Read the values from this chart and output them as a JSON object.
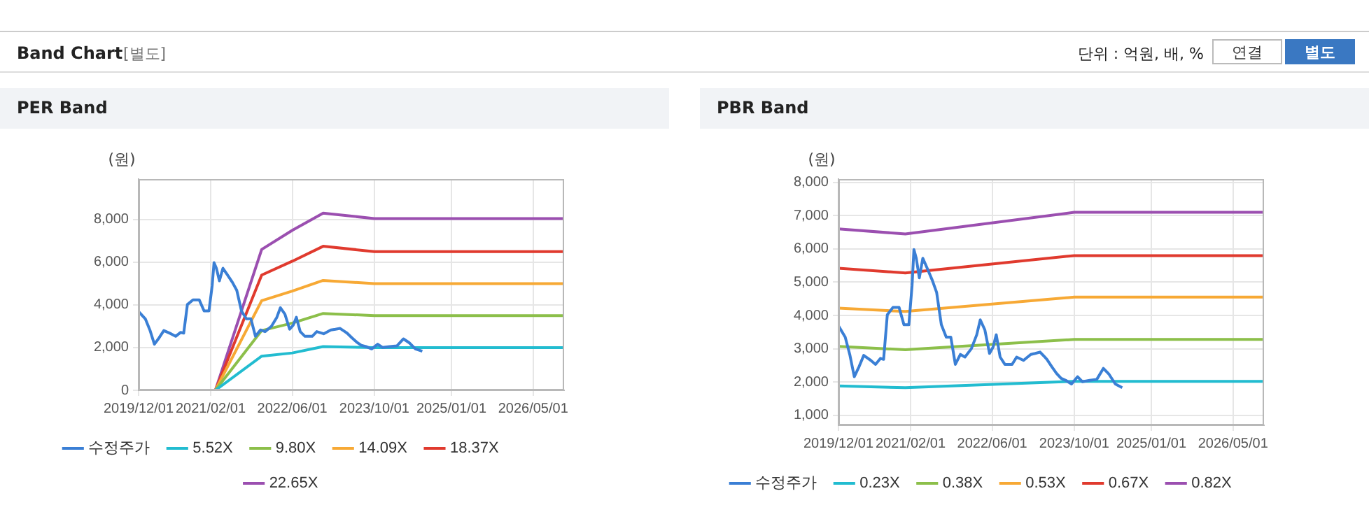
{
  "chart_data": [
    {
      "type": "line",
      "title": "PER Band",
      "ylabel": "(원)",
      "annotations": [
        "Band Chart",
        "[별도]",
        "단위 : 억원, 배, %",
        "연결",
        "별도"
      ],
      "xlim": [
        "2019-12-01",
        "2026-11-01"
      ],
      "xticks": [
        {
          "value": "2019-12-01",
          "label": "2019/12/01"
        },
        {
          "value": "2021-02-01",
          "label": "2021/02/01"
        },
        {
          "value": "2022-06-01",
          "label": "2022/06/01"
        },
        {
          "value": "2023-10-01",
          "label": "2023/10/01"
        },
        {
          "value": "2025-01-01",
          "label": "2025/01/01"
        },
        {
          "value": "2026-05-01",
          "label": "2026/05/01"
        }
      ],
      "ylim": [
        0,
        9900
      ],
      "yticks": [
        {
          "value": 0,
          "label": "0"
        },
        {
          "value": 2000,
          "label": "2,000"
        },
        {
          "value": 4000,
          "label": "4,000"
        },
        {
          "value": 6000,
          "label": "6,000"
        },
        {
          "value": 8000,
          "label": "8,000"
        }
      ],
      "grid": true,
      "legend": "bottom",
      "marker": "none",
      "line_style": "solid",
      "series": [
        {
          "name": "수정주가",
          "color": "#3a7fd5",
          "x": [
            "2019-12-01",
            "2020-01-10",
            "2020-02-06",
            "2020-03-04",
            "2020-04-01",
            "2020-04-29",
            "2020-06-10",
            "2020-07-08",
            "2020-08-06",
            "2020-08-25",
            "2020-09-16",
            "2020-10-19",
            "2020-11-25",
            "2020-12-24",
            "2021-01-22",
            "2021-02-10",
            "2021-02-21",
            "2021-03-07",
            "2021-03-25",
            "2021-04-15",
            "2021-05-10",
            "2021-06-10",
            "2021-07-06",
            "2021-08-03",
            "2021-09-01",
            "2021-09-28",
            "2021-10-25",
            "2021-11-24",
            "2021-12-21",
            "2022-01-28",
            "2022-03-01",
            "2022-03-22",
            "2022-04-18",
            "2022-05-16",
            "2022-06-06",
            "2022-06-25",
            "2022-07-18",
            "2022-08-15",
            "2022-09-27",
            "2022-10-24",
            "2022-12-04",
            "2023-01-16",
            "2023-02-12",
            "2023-03-12",
            "2023-04-09",
            "2023-04-22",
            "2023-05-21",
            "2023-06-18",
            "2023-07-15",
            "2023-08-12",
            "2023-09-15",
            "2023-10-21",
            "2023-11-18",
            "2024-01-01",
            "2024-02-12",
            "2024-03-22",
            "2024-04-25",
            "2024-06-01",
            "2024-07-12"
          ],
          "values": [
            3690,
            3350,
            2830,
            2160,
            2460,
            2800,
            2650,
            2530,
            2710,
            2680,
            4020,
            4240,
            4240,
            3720,
            3720,
            4900,
            5980,
            5720,
            5130,
            5720,
            5430,
            5060,
            4690,
            3720,
            3350,
            3350,
            2530,
            2830,
            2750,
            3000,
            3420,
            3870,
            3570,
            2860,
            3050,
            3420,
            2750,
            2530,
            2530,
            2750,
            2650,
            2830,
            2860,
            2900,
            2750,
            2680,
            2460,
            2260,
            2110,
            2050,
            1940,
            2160,
            2010,
            2050,
            2080,
            2410,
            2230,
            1940,
            1830
          ]
        },
        {
          "name": "5.52X",
          "color": "#22bcd0",
          "x": [
            "2021-03-01",
            "2021-12-01",
            "2022-06-01",
            "2022-12-01",
            "2023-10-01",
            "2026-11-01"
          ],
          "values": [
            0,
            1600,
            1750,
            2050,
            2000,
            2000
          ]
        },
        {
          "name": "9.80X",
          "color": "#8cbf4a",
          "x": [
            "2021-03-01",
            "2021-12-01",
            "2022-06-01",
            "2022-12-01",
            "2023-10-01",
            "2026-11-01"
          ],
          "values": [
            0,
            2800,
            3150,
            3600,
            3500,
            3500
          ]
        },
        {
          "name": "14.09X",
          "color": "#f7a935",
          "x": [
            "2021-03-01",
            "2021-12-01",
            "2022-06-01",
            "2022-12-01",
            "2023-10-01",
            "2026-11-01"
          ],
          "values": [
            0,
            4200,
            4650,
            5150,
            5000,
            5000
          ]
        },
        {
          "name": "18.37X",
          "color": "#e03a2e",
          "x": [
            "2021-03-01",
            "2021-12-01",
            "2022-06-01",
            "2022-12-01",
            "2023-10-01",
            "2026-11-01"
          ],
          "values": [
            0,
            5400,
            6050,
            6750,
            6500,
            6500
          ]
        },
        {
          "name": "22.65X",
          "color": "#9b4fb0",
          "x": [
            "2021-03-01",
            "2021-12-01",
            "2022-06-01",
            "2022-12-01",
            "2023-10-01",
            "2026-11-01"
          ],
          "values": [
            0,
            6600,
            7500,
            8300,
            8050,
            8050
          ]
        }
      ]
    },
    {
      "type": "line",
      "title": "PBR Band",
      "ylabel": "(원)",
      "xlim": [
        "2019-12-01",
        "2026-11-01"
      ],
      "xticks": [
        {
          "value": "2019-12-01",
          "label": "2019/12/01"
        },
        {
          "value": "2021-02-01",
          "label": "2021/02/01"
        },
        {
          "value": "2022-06-01",
          "label": "2022/06/01"
        },
        {
          "value": "2023-10-01",
          "label": "2023/10/01"
        },
        {
          "value": "2025-01-01",
          "label": "2025/01/01"
        },
        {
          "value": "2026-05-01",
          "label": "2026/05/01"
        }
      ],
      "ylim": [
        700,
        8100
      ],
      "yticks": [
        {
          "value": 1000,
          "label": "1,000"
        },
        {
          "value": 2000,
          "label": "2,000"
        },
        {
          "value": 3000,
          "label": "3,000"
        },
        {
          "value": 4000,
          "label": "4,000"
        },
        {
          "value": 5000,
          "label": "5,000"
        },
        {
          "value": 6000,
          "label": "6,000"
        },
        {
          "value": 7000,
          "label": "7,000"
        },
        {
          "value": 8000,
          "label": "8,000"
        }
      ],
      "grid": true,
      "legend": "bottom",
      "marker": "none",
      "line_style": "solid",
      "series": [
        {
          "name": "수정주가",
          "color": "#3a7fd5",
          "x": [
            "2019-12-01",
            "2020-01-10",
            "2020-02-06",
            "2020-03-04",
            "2020-04-01",
            "2020-04-29",
            "2020-06-10",
            "2020-07-08",
            "2020-08-06",
            "2020-08-25",
            "2020-09-16",
            "2020-10-19",
            "2020-11-25",
            "2020-12-24",
            "2021-01-22",
            "2021-02-10",
            "2021-02-21",
            "2021-03-07",
            "2021-03-25",
            "2021-04-15",
            "2021-05-10",
            "2021-06-10",
            "2021-07-06",
            "2021-08-03",
            "2021-09-01",
            "2021-09-28",
            "2021-10-25",
            "2021-11-24",
            "2021-12-21",
            "2022-01-28",
            "2022-03-01",
            "2022-03-22",
            "2022-04-18",
            "2022-05-16",
            "2022-06-06",
            "2022-06-25",
            "2022-07-18",
            "2022-08-15",
            "2022-09-27",
            "2022-10-24",
            "2022-12-04",
            "2023-01-16",
            "2023-02-12",
            "2023-03-12",
            "2023-04-09",
            "2023-04-22",
            "2023-05-21",
            "2023-06-18",
            "2023-07-15",
            "2023-08-12",
            "2023-09-15",
            "2023-10-21",
            "2023-11-18",
            "2024-01-01",
            "2024-02-12",
            "2024-03-22",
            "2024-04-25",
            "2024-06-01",
            "2024-07-12"
          ],
          "values": [
            3690,
            3350,
            2830,
            2160,
            2460,
            2800,
            2650,
            2530,
            2710,
            2680,
            4020,
            4240,
            4240,
            3720,
            3720,
            4900,
            5980,
            5720,
            5130,
            5720,
            5430,
            5060,
            4690,
            3720,
            3350,
            3350,
            2530,
            2830,
            2750,
            3000,
            3420,
            3870,
            3570,
            2860,
            3050,
            3420,
            2750,
            2530,
            2530,
            2750,
            2650,
            2830,
            2860,
            2900,
            2750,
            2680,
            2460,
            2260,
            2110,
            2050,
            1940,
            2160,
            2010,
            2050,
            2080,
            2410,
            2230,
            1940,
            1830
          ]
        },
        {
          "name": "0.23X",
          "color": "#22bcd0",
          "x": [
            "2019-12-01",
            "2021-01-01",
            "2023-10-01",
            "2026-11-01"
          ],
          "values": [
            1880,
            1830,
            2020,
            2020
          ]
        },
        {
          "name": "0.38X",
          "color": "#8cbf4a",
          "x": [
            "2019-12-01",
            "2021-01-01",
            "2023-10-01",
            "2026-11-01"
          ],
          "values": [
            3070,
            2970,
            3280,
            3280
          ]
        },
        {
          "name": "0.53X",
          "color": "#f7a935",
          "x": [
            "2019-12-01",
            "2021-01-01",
            "2023-10-01",
            "2026-11-01"
          ],
          "values": [
            4220,
            4120,
            4550,
            4550
          ]
        },
        {
          "name": "0.67X",
          "color": "#e03a2e",
          "x": [
            "2019-12-01",
            "2021-01-01",
            "2023-10-01",
            "2026-11-01"
          ],
          "values": [
            5420,
            5280,
            5800,
            5800
          ]
        },
        {
          "name": "0.82X",
          "color": "#9b4fb0",
          "x": [
            "2019-12-01",
            "2021-01-01",
            "2023-10-01",
            "2026-11-01"
          ],
          "values": [
            6600,
            6450,
            7100,
            7100
          ]
        }
      ]
    }
  ]
}
